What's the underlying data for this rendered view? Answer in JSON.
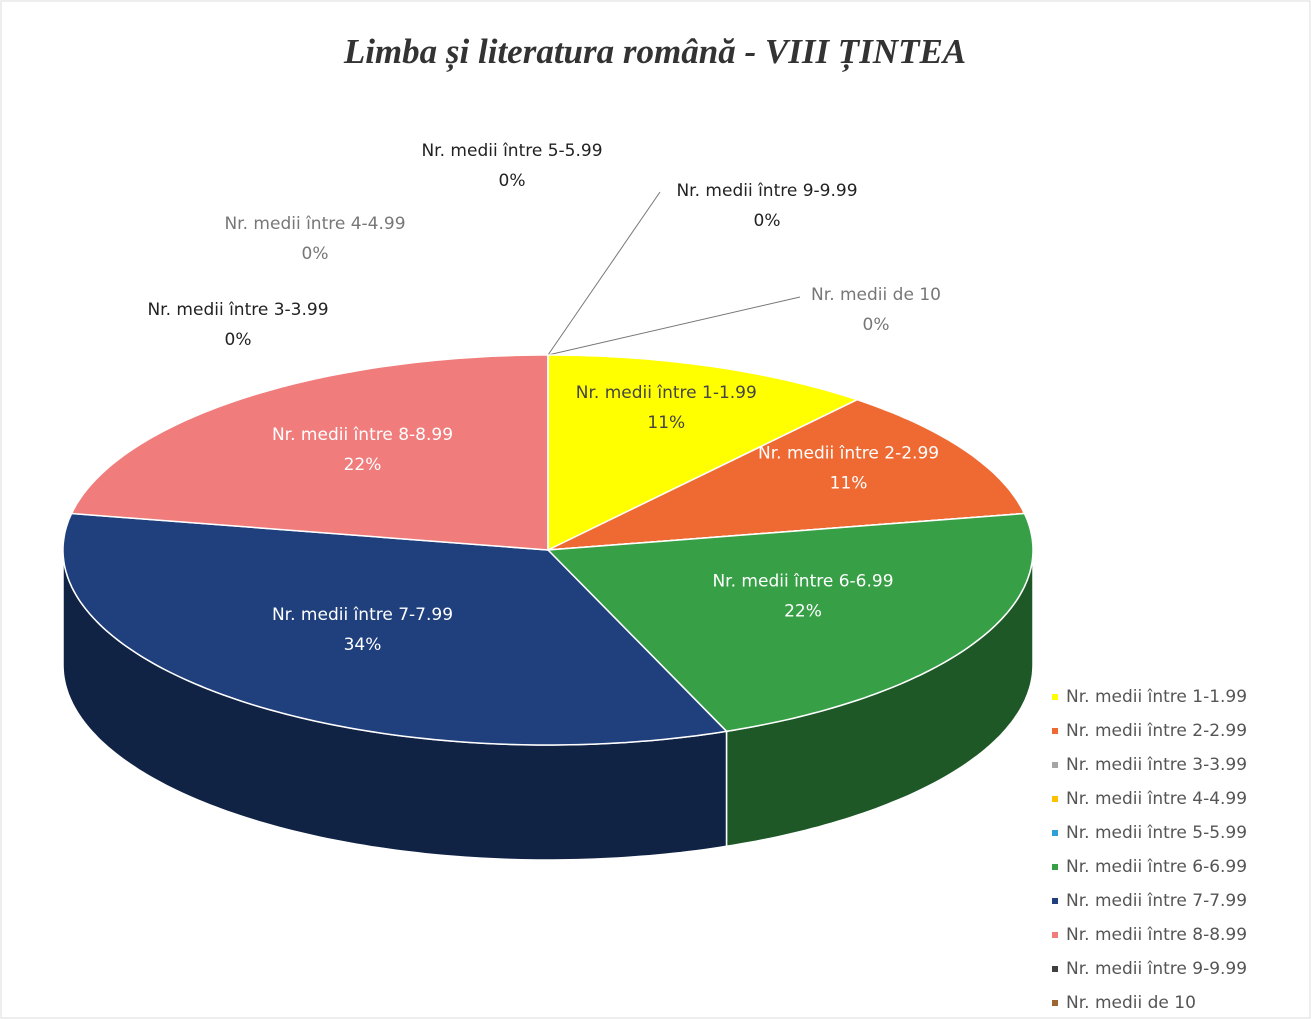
{
  "chart_data": {
    "type": "pie",
    "title": "Limba și literatura română - VIII ȚINTEA",
    "categories": [
      "Nr. medii între 1-1.99",
      "Nr. medii între 2-2.99",
      "Nr. medii între 3-3.99",
      "Nr. medii între 4-4.99",
      "Nr. medii între 5-5.99",
      "Nr. medii între 6-6.99",
      "Nr. medii între 7-7.99",
      "Nr. medii între 8-8.99",
      "Nr. medii între 9-9.99",
      "Nr. medii de 10"
    ],
    "values": [
      11,
      11,
      0,
      0,
      0,
      22,
      34,
      22,
      0,
      0
    ],
    "value_labels": [
      "11%",
      "11%",
      "0%",
      "0%",
      "0%",
      "22%",
      "34%",
      "22%",
      "0%",
      "0%"
    ],
    "colors": [
      "#ffff00",
      "#ef6a33",
      "#a5a5a5",
      "#ffc000",
      "#2e9fd8",
      "#37a047",
      "#1f3f7d",
      "#f07c7c",
      "#404040",
      "#9c6531"
    ],
    "legend": "right"
  }
}
